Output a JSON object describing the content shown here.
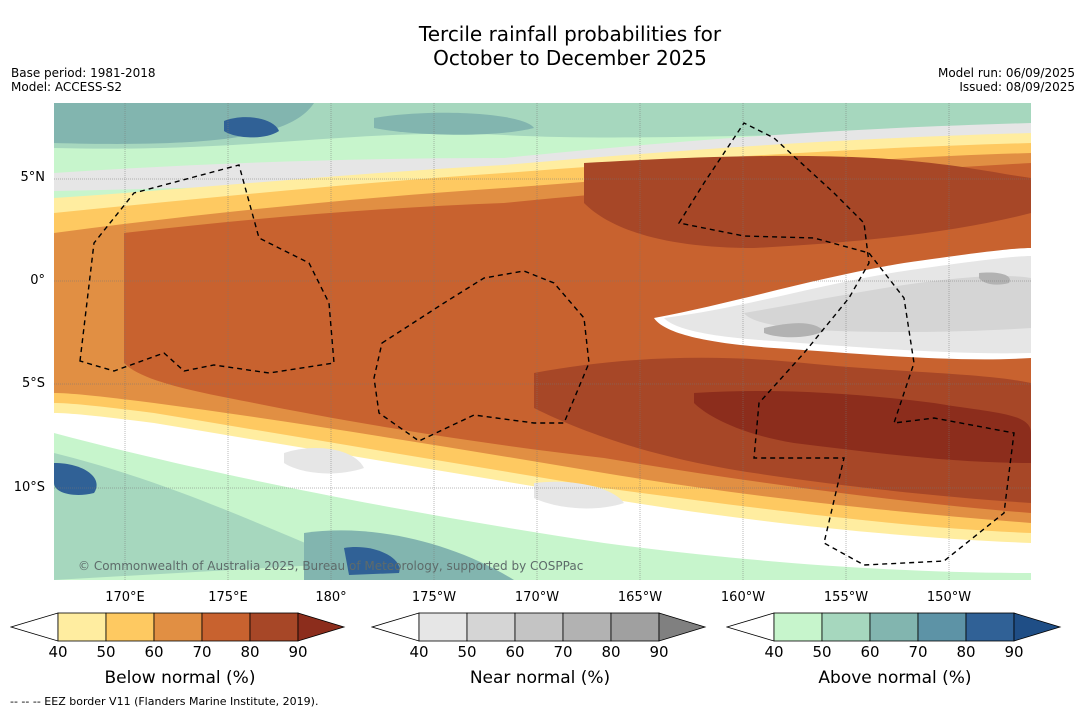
{
  "title_line1": "Tercile rainfall probabilities for",
  "title_line2": "October to December 2025",
  "meta_left": [
    "Base period: 1981-2018",
    "Model: ACCESS-S2"
  ],
  "meta_right": [
    "Model run: 06/09/2025",
    "Issued: 08/09/2025"
  ],
  "copyright": "© Commonwealth of Australia 2025, Bureau of Meteorology, supported by COSPPac",
  "footer": "-- -- -- EEZ border V11 (Flanders Marine Institute, 2019).",
  "lat_labels": [
    "5°N",
    "0°",
    "5°S",
    "10°S"
  ],
  "lon_labels": [
    "170°E",
    "175°E",
    "180°",
    "175°W",
    "170°W",
    "165°W",
    "160°W",
    "155°W",
    "150°W"
  ],
  "colorbars": [
    {
      "title": "Below normal (%)",
      "ticks": [
        "40",
        "50",
        "60",
        "70",
        "80",
        "90"
      ],
      "colors": [
        "#ffffff",
        "#ffeda0",
        "#fec961",
        "#e18f43",
        "#c8622f",
        "#a74727",
        "#8c2d1c"
      ]
    },
    {
      "title": "Near normal (%)",
      "ticks": [
        "40",
        "50",
        "60",
        "70",
        "80",
        "90"
      ],
      "colors": [
        "#ffffff",
        "#e6e6e6",
        "#d5d5d5",
        "#c4c4c4",
        "#b2b2b2",
        "#a0a0a0",
        "#808080"
      ]
    },
    {
      "title": "Above normal (%)",
      "ticks": [
        "40",
        "50",
        "60",
        "70",
        "80",
        "90"
      ],
      "colors": [
        "#ffffff",
        "#c7f5cc",
        "#a6d7be",
        "#82b5af",
        "#5d93a6",
        "#306196",
        "#1f4e86"
      ]
    }
  ],
  "legend_colors": {
    "below_50": "#ffeda0",
    "below_60": "#fec961",
    "below_70": "#e18f43",
    "below_80": "#c8622f",
    "below_90": "#a74727",
    "near_40": "#e6e6e6",
    "near_60": "#c4c4c4",
    "above_50": "#c7f5cc",
    "above_60": "#a6d7be",
    "above_70": "#82b5af",
    "above_80": "#5d93a6",
    "above_90": "#306196"
  }
}
